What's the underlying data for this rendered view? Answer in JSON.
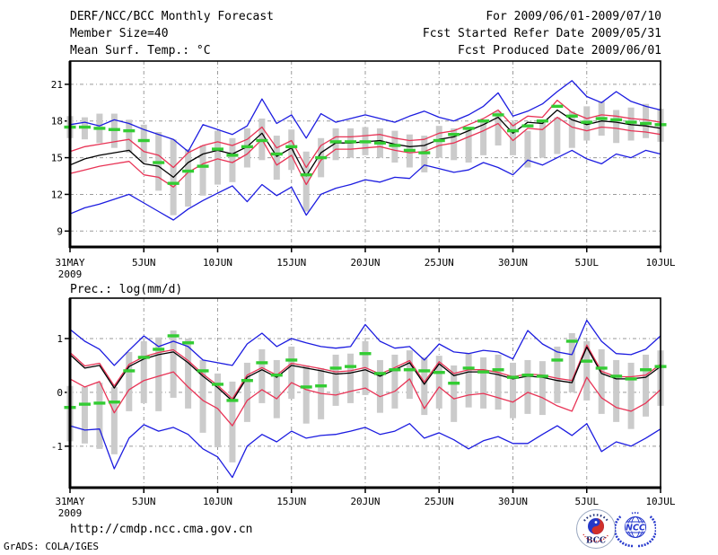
{
  "header": {
    "title": "DERF/NCC/BCC Monthly Forecast",
    "member_size": "Member Size=40",
    "for_period": "For 2009/06/01-2009/07/10",
    "fcst_started": "Fcst Started Refer Date 2009/05/31",
    "fcst_produced": "Fcst Produced Date 2009/06/01"
  },
  "footer": {
    "url": "http://cmdp.ncc.cma.gov.cn",
    "credit": "GrADS: COLA/IGES",
    "bcc_label": "BCC",
    "ncc_label": "NCC"
  },
  "colors": {
    "envelope_blue": "#1c1ce0",
    "spread_red": "#e83355",
    "mean_black": "#000000",
    "obs_green": "#33cc33",
    "bar_gray": "#cbcbcb",
    "grid_gray": "#9a9a9a",
    "frame_black": "#000000",
    "bcc_navy": "#16246e",
    "bcc_red": "#cc2222",
    "ncc_blue": "#2638cc"
  },
  "chart_data": [
    {
      "type": "line",
      "title": "Mean Surf. Temp.: °C",
      "n_days": 41,
      "ylim": [
        7.7,
        22.9
      ],
      "yticks": [
        9,
        12,
        15,
        18,
        21
      ],
      "grid": true,
      "legend": false,
      "x_tick_days": [
        0,
        5,
        10,
        15,
        20,
        25,
        30,
        35,
        40
      ],
      "x_tick_labels": [
        "31MAY",
        "5JUN",
        "10JUN",
        "15JUN",
        "20JUN",
        "25JUN",
        "30JUN",
        "5JUL",
        "10JUL"
      ],
      "x_year_label": "2009",
      "series": [
        {
          "name": "ensemble-max",
          "color": "#1c1ce0",
          "values": [
            17.7,
            17.9,
            17.6,
            18.1,
            17.8,
            17.3,
            16.9,
            16.5,
            15.5,
            17.7,
            17.3,
            16.9,
            17.6,
            19.8,
            17.8,
            18.5,
            16.6,
            18.6,
            17.9,
            18.2,
            18.5,
            18.2,
            17.9,
            18.4,
            18.8,
            18.3,
            18.0,
            18.5,
            19.2,
            20.3,
            18.4,
            18.8,
            19.4,
            20.4,
            21.3,
            20.0,
            19.5,
            20.4,
            19.6,
            19.2,
            18.9
          ]
        },
        {
          "name": "upper-spread",
          "color": "#e83355",
          "values": [
            15.5,
            15.9,
            16.1,
            16.3,
            16.5,
            15.5,
            15.2,
            14.2,
            15.4,
            16.0,
            16.3,
            16.0,
            16.5,
            17.5,
            15.8,
            16.4,
            14.2,
            16.0,
            16.7,
            16.7,
            16.8,
            16.9,
            16.6,
            16.4,
            16.5,
            17.0,
            17.2,
            17.7,
            18.2,
            18.9,
            17.6,
            18.4,
            18.3,
            19.7,
            18.7,
            18.2,
            18.5,
            18.4,
            18.2,
            18.1,
            17.9
          ]
        },
        {
          "name": "ensemble-mean",
          "color": "#000000",
          "values": [
            14.4,
            14.9,
            15.2,
            15.4,
            15.6,
            14.5,
            14.3,
            13.4,
            14.6,
            15.3,
            15.6,
            15.3,
            15.9,
            17.0,
            15.1,
            15.8,
            13.5,
            15.4,
            16.2,
            16.2,
            16.3,
            16.4,
            16.1,
            15.9,
            16.0,
            16.5,
            16.7,
            17.2,
            17.7,
            18.3,
            17.0,
            17.9,
            17.8,
            18.9,
            18.1,
            17.7,
            18.0,
            17.9,
            17.7,
            17.6,
            17.4
          ]
        },
        {
          "name": "lower-spread",
          "color": "#e83355",
          "values": [
            13.7,
            14.0,
            14.3,
            14.5,
            14.7,
            13.6,
            13.4,
            12.6,
            13.8,
            14.5,
            14.9,
            14.6,
            15.3,
            16.5,
            14.4,
            15.2,
            12.8,
            14.8,
            15.7,
            15.7,
            15.8,
            15.9,
            15.6,
            15.4,
            15.5,
            16.0,
            16.2,
            16.7,
            17.2,
            17.8,
            16.4,
            17.4,
            17.3,
            18.3,
            17.5,
            17.2,
            17.5,
            17.4,
            17.2,
            17.1,
            16.9
          ]
        },
        {
          "name": "ensemble-min",
          "color": "#1c1ce0",
          "values": [
            10.4,
            10.9,
            11.2,
            11.6,
            12.0,
            11.3,
            10.6,
            9.9,
            10.8,
            11.5,
            12.1,
            12.7,
            11.4,
            12.8,
            11.9,
            12.6,
            10.3,
            12.0,
            12.5,
            12.8,
            13.2,
            13.0,
            13.4,
            13.3,
            14.4,
            14.1,
            13.8,
            14.0,
            14.6,
            14.2,
            13.6,
            14.8,
            14.4,
            15.0,
            15.6,
            14.9,
            14.5,
            15.3,
            15.0,
            15.6,
            15.3
          ]
        }
      ],
      "bars": {
        "name": "spread-bar",
        "color": "#cbcbcb",
        "top": [
          18.4,
          18.3,
          18.6,
          18.6,
          18.1,
          17.7,
          17.1,
          16.5,
          15.7,
          16.0,
          17.2,
          16.6,
          17.4,
          18.2,
          16.8,
          17.3,
          15.5,
          16.6,
          17.4,
          17.4,
          17.5,
          17.4,
          17.2,
          16.9,
          16.8,
          17.6,
          17.4,
          17.3,
          17.9,
          18.8,
          17.9,
          17.2,
          18.0,
          18.3,
          18.8,
          19.2,
          19.6,
          18.9,
          19.1,
          19.4,
          19.0
        ],
        "bottom": [
          16.6,
          16.5,
          16.2,
          15.8,
          15.4,
          14.6,
          12.3,
          10.3,
          11.0,
          11.9,
          12.8,
          13.0,
          14.2,
          14.8,
          13.2,
          14.0,
          10.6,
          13.4,
          14.8,
          15.0,
          15.2,
          15.0,
          14.6,
          14.2,
          13.8,
          15.0,
          14.8,
          14.6,
          15.2,
          16.0,
          15.2,
          14.2,
          15.0,
          15.3,
          15.8,
          16.4,
          16.8,
          16.2,
          16.4,
          16.6,
          16.3
        ]
      },
      "obs_dashes": {
        "name": "observation-dash",
        "color": "#33cc33",
        "values": [
          17.5,
          17.5,
          17.4,
          17.3,
          17.2,
          16.4,
          14.6,
          12.9,
          13.9,
          14.3,
          15.7,
          15.2,
          15.9,
          16.4,
          15.3,
          15.9,
          13.6,
          15.0,
          16.3,
          16.3,
          16.3,
          16.2,
          16.0,
          15.6,
          15.4,
          16.4,
          16.9,
          17.4,
          18.0,
          18.5,
          17.2,
          17.6,
          18.0,
          19.2,
          18.4,
          17.9,
          18.2,
          18.1,
          17.9,
          17.8,
          17.7
        ]
      }
    },
    {
      "type": "line",
      "title": "Prec.: log(mm/d)",
      "n_days": 41,
      "ylim": [
        -1.77,
        1.75
      ],
      "yticks": [
        -1,
        0,
        1
      ],
      "grid": true,
      "legend": false,
      "x_tick_days": [
        0,
        5,
        10,
        15,
        20,
        25,
        30,
        35,
        40
      ],
      "x_tick_labels": [
        "31MAY",
        "5JUN",
        "10JUN",
        "15JUN",
        "20JUN",
        "25JUN",
        "30JUN",
        "5JUL",
        "10JUL"
      ],
      "x_year_label": "2009",
      "series": [
        {
          "name": "ensemble-max",
          "color": "#1c1ce0",
          "values": [
            1.17,
            0.95,
            0.8,
            0.5,
            0.78,
            1.05,
            0.85,
            0.95,
            0.85,
            0.6,
            0.55,
            0.5,
            0.9,
            1.1,
            0.85,
            1.0,
            0.92,
            0.85,
            0.82,
            0.85,
            1.26,
            0.95,
            0.82,
            0.85,
            0.6,
            0.9,
            0.75,
            0.72,
            0.78,
            0.75,
            0.62,
            1.15,
            0.9,
            0.75,
            0.7,
            1.34,
            0.95,
            0.72,
            0.7,
            0.8,
            1.05
          ]
        },
        {
          "name": "upper-spread",
          "color": "#e83355",
          "values": [
            0.74,
            0.49,
            0.54,
            0.12,
            0.52,
            0.66,
            0.74,
            0.79,
            0.59,
            0.34,
            0.13,
            -0.12,
            0.32,
            0.46,
            0.32,
            0.54,
            0.49,
            0.44,
            0.38,
            0.4,
            0.46,
            0.34,
            0.46,
            0.59,
            0.19,
            0.57,
            0.35,
            0.42,
            0.42,
            0.37,
            0.29,
            0.34,
            0.32,
            0.26,
            0.22,
            0.88,
            0.39,
            0.29,
            0.29,
            0.32,
            0.52
          ]
        },
        {
          "name": "ensemble-mean",
          "color": "#000000",
          "values": [
            0.7,
            0.45,
            0.5,
            0.08,
            0.48,
            0.62,
            0.7,
            0.75,
            0.55,
            0.3,
            0.09,
            -0.16,
            0.28,
            0.42,
            0.28,
            0.5,
            0.45,
            0.4,
            0.34,
            0.36,
            0.42,
            0.3,
            0.42,
            0.55,
            0.15,
            0.53,
            0.31,
            0.38,
            0.38,
            0.33,
            0.25,
            0.3,
            0.28,
            0.22,
            0.18,
            0.84,
            0.35,
            0.25,
            0.25,
            0.28,
            0.48
          ]
        },
        {
          "name": "lower-spread",
          "color": "#e83355",
          "values": [
            0.25,
            0.1,
            0.2,
            -0.38,
            0.05,
            0.22,
            0.3,
            0.38,
            0.1,
            -0.15,
            -0.3,
            -0.62,
            -0.15,
            0.05,
            -0.12,
            0.18,
            0.05,
            -0.02,
            -0.05,
            0.02,
            0.08,
            -0.08,
            0.02,
            0.25,
            -0.3,
            0.1,
            -0.12,
            -0.05,
            -0.02,
            -0.1,
            -0.18,
            0.0,
            -0.1,
            -0.25,
            -0.35,
            0.28,
            -0.1,
            -0.28,
            -0.35,
            -0.2,
            0.05
          ]
        },
        {
          "name": "ensemble-min",
          "color": "#1c1ce0",
          "values": [
            -0.62,
            -0.7,
            -0.68,
            -1.42,
            -0.85,
            -0.6,
            -0.72,
            -0.65,
            -0.78,
            -1.05,
            -1.2,
            -1.58,
            -1.0,
            -0.78,
            -0.92,
            -0.72,
            -0.85,
            -0.8,
            -0.78,
            -0.72,
            -0.65,
            -0.78,
            -0.72,
            -0.58,
            -0.85,
            -0.75,
            -0.88,
            -1.05,
            -0.9,
            -0.82,
            -0.95,
            -0.95,
            -0.78,
            -0.62,
            -0.8,
            -0.58,
            -1.1,
            -0.92,
            -1.0,
            -0.85,
            -0.68
          ]
        }
      ],
      "bars": {
        "name": "spread-bar",
        "color": "#cbcbcb",
        "top": [
          0.12,
          0.1,
          0.18,
          0.1,
          0.75,
          0.95,
          1.02,
          1.15,
          1.0,
          0.6,
          0.35,
          0.2,
          0.55,
          0.8,
          0.6,
          0.85,
          0.5,
          0.45,
          0.7,
          0.72,
          0.95,
          0.6,
          0.7,
          0.78,
          0.65,
          0.68,
          0.5,
          0.72,
          0.65,
          0.7,
          0.55,
          0.6,
          0.58,
          0.85,
          1.1,
          0.95,
          0.8,
          0.6,
          0.55,
          0.7,
          0.78
        ],
        "bottom": [
          -0.91,
          -0.95,
          -1.05,
          -1.15,
          -0.35,
          -0.2,
          -0.35,
          -0.1,
          -0.3,
          -0.75,
          -1.02,
          -1.3,
          -0.55,
          -0.2,
          -0.48,
          -0.12,
          -0.58,
          -0.5,
          -0.25,
          -0.2,
          -0.05,
          -0.38,
          -0.3,
          -0.12,
          -0.42,
          -0.3,
          -0.55,
          -0.28,
          -0.3,
          -0.32,
          -0.48,
          -0.4,
          -0.42,
          -0.2,
          0.0,
          -0.15,
          -0.4,
          -0.55,
          -0.68,
          -0.45,
          -0.25
        ]
      },
      "obs_dashes": {
        "name": "observation-dash",
        "color": "#33cc33",
        "values": [
          -0.28,
          -0.22,
          -0.2,
          -0.18,
          0.4,
          0.65,
          0.8,
          1.05,
          0.92,
          0.4,
          0.15,
          -0.15,
          0.22,
          0.55,
          0.32,
          0.6,
          0.1,
          0.12,
          0.45,
          0.48,
          0.72,
          0.35,
          0.42,
          0.42,
          0.4,
          0.37,
          0.17,
          0.45,
          0.38,
          0.42,
          0.28,
          0.32,
          0.3,
          0.6,
          0.95,
          0.58,
          0.45,
          0.3,
          0.25,
          0.42,
          0.48
        ]
      }
    }
  ]
}
